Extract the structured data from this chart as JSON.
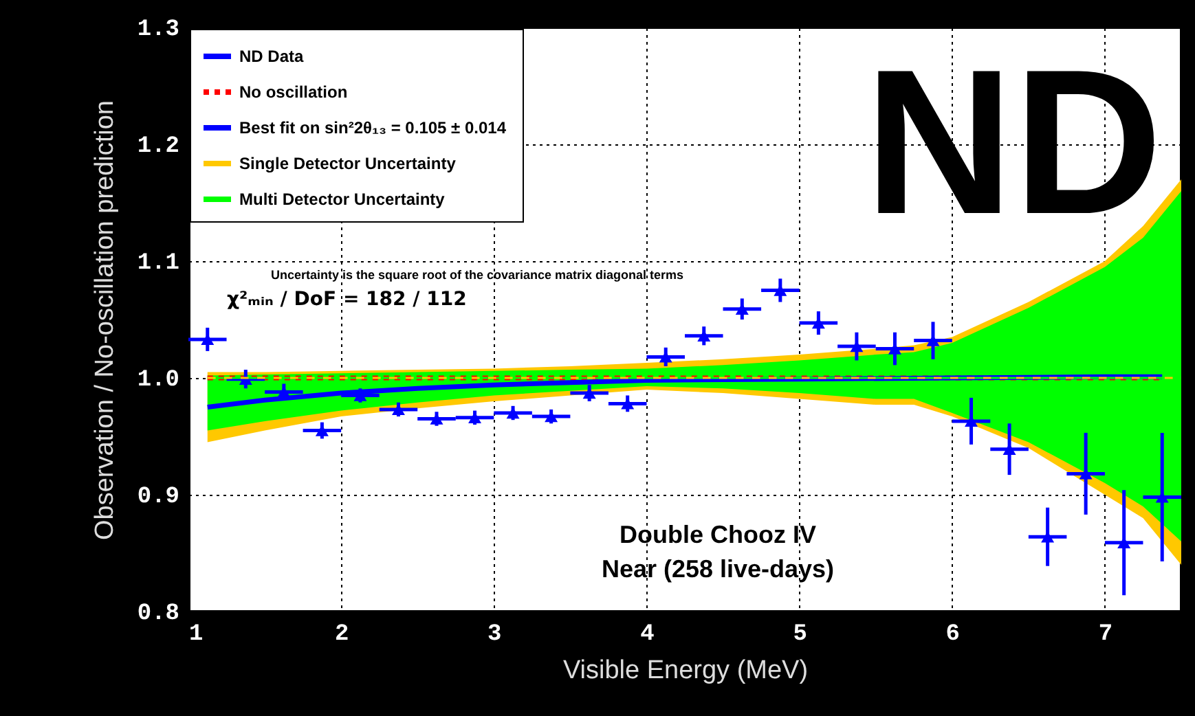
{
  "chart_data": {
    "type": "scatter",
    "xlabel": "Visible Energy (MeV)",
    "ylabel": "Observation / No-oscillation prediction",
    "xlim": [
      1,
      7.5
    ],
    "xticks": [
      1,
      2,
      3,
      4,
      5,
      6,
      7
    ],
    "ylim": [
      0.8,
      1.3
    ],
    "yticks": [
      {
        "value": 0.8,
        "label": "0.8"
      },
      {
        "value": 0.9,
        "label": "0.9"
      },
      {
        "value": 1.0,
        "label": "1.0"
      },
      {
        "value": 1.1,
        "label": "1.1"
      },
      {
        "value": 1.2,
        "label": "1.2"
      },
      {
        "value": 1.3,
        "label": "1.3"
      }
    ],
    "grid": true,
    "legend": "top left",
    "annotations": [
      "ND",
      "χ²ₘᵢₙ / DoF = 182 / 112",
      "Double Chooz IV",
      "Near (258 live-days)",
      "Uncertainty is the square root of the covariance matrix diagonal terms"
    ],
    "series": [
      {
        "name": "ND Data",
        "color": "#0000ff",
        "marker": "triangle",
        "x": [
          1.125,
          1.375,
          1.625,
          1.875,
          2.125,
          2.375,
          2.625,
          2.875,
          3.125,
          3.375,
          3.625,
          3.875,
          4.125,
          4.375,
          4.625,
          4.875,
          5.125,
          5.375,
          5.625,
          5.875,
          6.125,
          6.375,
          6.625,
          6.875,
          7.125,
          7.375
        ],
        "values": [
          1.033,
          0.999,
          0.988,
          0.955,
          0.985,
          0.973,
          0.965,
          0.966,
          0.97,
          0.967,
          0.987,
          0.978,
          1.018,
          1.036,
          1.059,
          1.075,
          1.047,
          1.027,
          1.025,
          1.032,
          0.963,
          0.939,
          0.864,
          0.918,
          0.859,
          0.898
        ],
        "errors": [
          0.01,
          0.008,
          0.007,
          0.007,
          0.006,
          0.006,
          0.006,
          0.006,
          0.006,
          0.006,
          0.007,
          0.007,
          0.008,
          0.008,
          0.009,
          0.01,
          0.01,
          0.012,
          0.014,
          0.016,
          0.02,
          0.022,
          0.025,
          0.035,
          0.045,
          0.055
        ],
        "xerrors": [
          0.125,
          0.125,
          0.125,
          0.125,
          0.125,
          0.125,
          0.125,
          0.125,
          0.125,
          0.125,
          0.125,
          0.125,
          0.125,
          0.125,
          0.125,
          0.125,
          0.125,
          0.125,
          0.125,
          0.125,
          0.125,
          0.125,
          0.125,
          0.125,
          0.125,
          0.125
        ]
      },
      {
        "name": "No oscillation",
        "type": "line",
        "color": "#ff0000",
        "line_style": "dotted",
        "x": [
          1.125,
          7.375
        ],
        "values": [
          1.0,
          1.0
        ]
      },
      {
        "name": "Best fit on sin²2θ₁₃ = 0.105  ± 0.014",
        "type": "line",
        "color": "#0000ff",
        "line_style": "solid",
        "x": [
          1.125,
          1.5,
          2,
          2.5,
          3,
          3.5,
          4,
          5,
          6,
          7,
          7.375
        ],
        "values": [
          0.975,
          0.981,
          0.987,
          0.991,
          0.994,
          0.996,
          0.998,
          0.999,
          1.0,
          1.001,
          1.001
        ]
      },
      {
        "name": "Single Detector Uncertainty",
        "type": "line",
        "line_style": "dashed",
        "color": "#ffc800",
        "x": [
          1.125,
          1.5,
          2,
          2.5,
          3,
          3.5,
          4,
          4.5,
          5,
          5.5,
          5.75,
          6,
          6.5,
          7,
          7.25,
          7.5
        ],
        "values": [
          1,
          1,
          1,
          1,
          1,
          1,
          1,
          1,
          1,
          1,
          1,
          1,
          1,
          1,
          1,
          1
        ],
        "lower": [
          0.945,
          0.955,
          0.967,
          0.974,
          0.98,
          0.985,
          0.99,
          0.987,
          0.982,
          0.977,
          0.977,
          0.967,
          0.94,
          0.9,
          0.88,
          0.84
        ],
        "upper": [
          1.005,
          1.005,
          1.006,
          1.007,
          1.008,
          1.01,
          1.013,
          1.016,
          1.02,
          1.025,
          1.028,
          1.035,
          1.065,
          1.1,
          1.13,
          1.17
        ]
      },
      {
        "name": "Multi Detector Uncertainty",
        "type": "line",
        "line_style": "dashed",
        "color": "#00ff00",
        "x": [
          1.125,
          1.5,
          2,
          2.5,
          3,
          3.5,
          4,
          4.5,
          5,
          5.5,
          5.75,
          6,
          6.5,
          7,
          7.25,
          7.5
        ],
        "values": [
          1,
          1,
          1,
          1,
          1,
          1,
          1,
          1,
          1,
          1,
          1,
          1,
          1,
          1,
          1,
          1
        ],
        "lower": [
          0.955,
          0.963,
          0.972,
          0.979,
          0.985,
          0.989,
          0.993,
          0.991,
          0.987,
          0.982,
          0.982,
          0.97,
          0.945,
          0.91,
          0.89,
          0.86
        ],
        "upper": [
          1.002,
          1.003,
          1.004,
          1.005,
          1.006,
          1.007,
          1.008,
          1.011,
          1.015,
          1.02,
          1.022,
          1.03,
          1.06,
          1.095,
          1.12,
          1.16
        ]
      }
    ]
  }
}
